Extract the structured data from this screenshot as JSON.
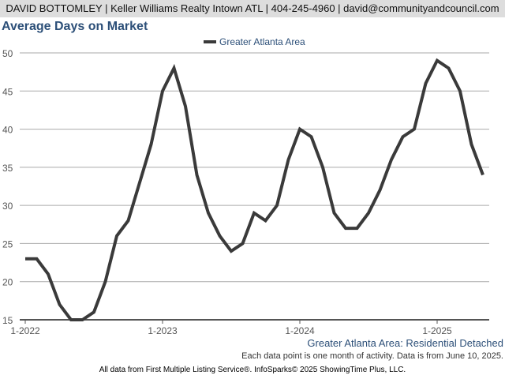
{
  "header": "DAVID BOTTOMLEY | Keller Williams Realty Intown ATL | 404-245-4960 | david@communityandcouncil.com",
  "subtitle": "Greater Atlanta Area: Residential Detached",
  "note": "Each data point is one month of activity. Data is from June 10, 2025.",
  "footer": "All data from First Multiple Listing Service®. InfoSparks© 2025 ShowingTime Plus, LLC.",
  "colors": {
    "line": "#3a3a3a",
    "title": "#2c4f78"
  },
  "chart_data": {
    "type": "line",
    "title": "Average Days on Market",
    "xlabel": "",
    "ylabel": "",
    "ylim": [
      15,
      50
    ],
    "yticks": [
      "15",
      "20",
      "25",
      "30",
      "35",
      "40",
      "45",
      "50"
    ],
    "xticks": [
      "1-2022",
      "1-2023",
      "1-2024",
      "1-2025"
    ],
    "legend": "top-center",
    "grid": true,
    "x_start": "2022-01",
    "x_interval": "month",
    "series": [
      {
        "name": "Greater Atlanta Area",
        "values": [
          23,
          23,
          21,
          17,
          15,
          15,
          16,
          20,
          26,
          28,
          33,
          38,
          45,
          48,
          43,
          34,
          29,
          26,
          24,
          25,
          29,
          28,
          30,
          36,
          40,
          39,
          35,
          29,
          27,
          27,
          29,
          32,
          36,
          39,
          40,
          46,
          49,
          48,
          45,
          38,
          34
        ]
      }
    ]
  }
}
